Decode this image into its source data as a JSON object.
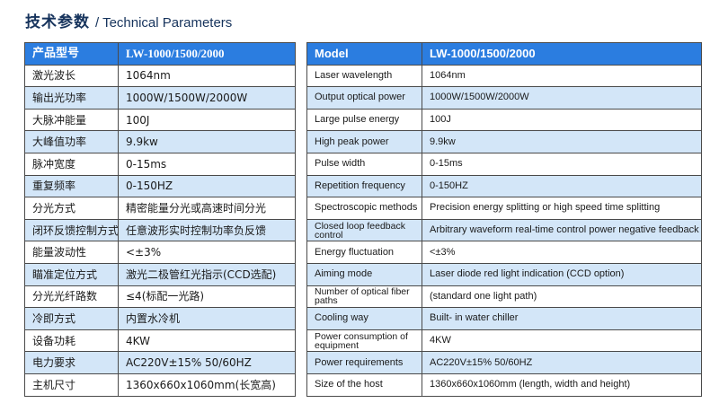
{
  "heading": {
    "zh": "技术参数",
    "en": "/ Technical Parameters"
  },
  "colors": {
    "header_blue": "#2b7de0",
    "row_alt": "#d3e6f8",
    "heading_navy": "#16335c"
  },
  "left_table": {
    "header": {
      "label": "产品型号",
      "value": "LW-1000/1500/2000"
    },
    "rows": [
      {
        "label": "激光波长",
        "value": "1064nm"
      },
      {
        "label": "输出光功率",
        "value": "1000W/1500W/2000W"
      },
      {
        "label": "大脉冲能量",
        "value": "100J"
      },
      {
        "label": "大峰值功率",
        "value": "9.9kw"
      },
      {
        "label": "脉冲宽度",
        "value": "0-15ms"
      },
      {
        "label": "重复频率",
        "value": "0-150HZ"
      },
      {
        "label": "分光方式",
        "value": "精密能量分光或高速时间分光"
      },
      {
        "label": "闭环反馈控制方式",
        "value": "任意波形实时控制功率负反馈"
      },
      {
        "label": "能量波动性",
        "value": "<±3%"
      },
      {
        "label": "瞄准定位方式",
        "value": "激光二极管红光指示(CCD选配)"
      },
      {
        "label": "分光光纤路数",
        "value": "≤4(标配一光路)"
      },
      {
        "label": "冷即方式",
        "value": "内置水冷机"
      },
      {
        "label": "设备功耗",
        "value": "4KW"
      },
      {
        "label": "电力要求",
        "value": "AC220V±15%  50/60HZ"
      },
      {
        "label": "主机尺寸",
        "value": "1360x660x1060mm(长宽高)"
      }
    ]
  },
  "right_table": {
    "header": {
      "label": "Model",
      "value": "LW-1000/1500/2000"
    },
    "rows": [
      {
        "label": "Laser wavelength",
        "value": "1064nm"
      },
      {
        "label": "Output optical power",
        "value": "1000W/1500W/2000W"
      },
      {
        "label": "Large pulse energy",
        "value": "100J"
      },
      {
        "label": "High peak power",
        "value": "9.9kw"
      },
      {
        "label": "Pulse width",
        "value": "0-15ms"
      },
      {
        "label": "Repetition frequency",
        "value": "0-150HZ"
      },
      {
        "label": "Spectroscopic methods",
        "value": "Precision energy splitting or high speed time splitting"
      },
      {
        "label": "Closed loop feedback control",
        "value": "Arbitrary waveform real-time control power negative feedback"
      },
      {
        "label": "Energy fluctuation",
        "value": "<±3%"
      },
      {
        "label": "Aiming mode",
        "value": "Laser diode red light indication (CCD option)"
      },
      {
        "label": "Number of optical fiber paths",
        "value": "(standard one light path)"
      },
      {
        "label": "Cooling way",
        "value": "Built- in water chiller"
      },
      {
        "label": "Power consumption of equipment",
        "value": "4KW"
      },
      {
        "label": "Power requirements",
        "value": "AC220V±15%  50/60HZ"
      },
      {
        "label": "Size of the host",
        "value": "1360x660x1060mm (length, width and height)"
      }
    ]
  }
}
